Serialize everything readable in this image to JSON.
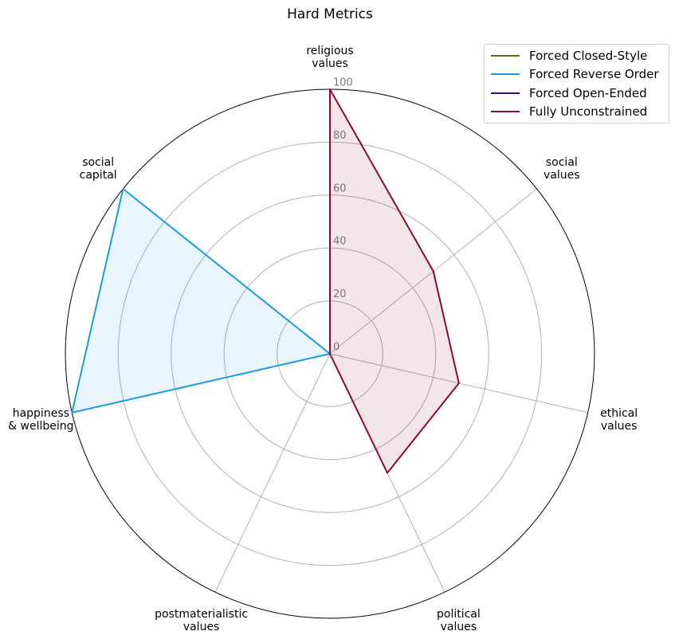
{
  "chart_data": {
    "type": "radar",
    "title": "Hard Metrics",
    "categories": [
      "religious\nvalues",
      "social\nvalues",
      "ethical\nvalues",
      "political\nvalues",
      "postmaterialistic\nvalues",
      "happiness\n& wellbeing",
      "social\ncapital"
    ],
    "ylim": [
      0,
      100
    ],
    "yticks": [
      0,
      20,
      40,
      60,
      80,
      100
    ],
    "grid": true,
    "series": [
      {
        "name": "Forced Closed-Style",
        "color": "#6b6b14",
        "values": [
          0,
          0,
          0,
          0,
          0,
          0,
          0
        ]
      },
      {
        "name": "Forced Reverse Order",
        "color": "#1b9ce0",
        "values": [
          0,
          0,
          0,
          0,
          0,
          100,
          100
        ]
      },
      {
        "name": "Forced Open-Ended",
        "color": "#3f0a73",
        "values": [
          0,
          0,
          0,
          0,
          0,
          0,
          0
        ]
      },
      {
        "name": "Fully Unconstrained",
        "color": "#8b0a2a",
        "values": [
          100,
          50,
          50,
          50,
          0,
          0,
          0
        ]
      }
    ]
  }
}
